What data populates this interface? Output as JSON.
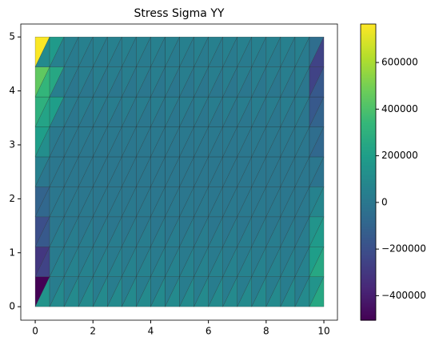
{
  "chart_data": {
    "type": "tripcolor",
    "title": "Stress Sigma YY",
    "colormap": "viridis",
    "x_nodes": [
      0,
      0.5,
      1,
      1.5,
      2,
      2.5,
      3,
      3.5,
      4,
      4.5,
      5,
      5.5,
      6,
      6.5,
      7,
      7.5,
      8,
      8.5,
      9,
      9.5,
      10
    ],
    "y_nodes": [
      0,
      0.5556,
      1.1111,
      1.6667,
      2.2222,
      2.7778,
      3.3333,
      3.8889,
      4.4444,
      5
    ],
    "values": [
      [
        -500000,
        150000,
        30000,
        100000,
        30000,
        100000,
        30000,
        100000,
        30000,
        100000,
        30000,
        100000,
        30000,
        100000,
        30000,
        100000,
        30000,
        100000,
        30000,
        100000,
        30000,
        100000,
        30000,
        100000,
        30000,
        100000,
        30000,
        100000,
        30000,
        100000,
        30000,
        100000,
        30000,
        100000,
        30000,
        100000,
        30000,
        100000,
        150000,
        250000
      ],
      [
        -300000,
        -250000,
        20000,
        60000,
        20000,
        60000,
        20000,
        60000,
        20000,
        60000,
        20000,
        60000,
        20000,
        60000,
        20000,
        60000,
        20000,
        60000,
        20000,
        60000,
        20000,
        60000,
        20000,
        60000,
        20000,
        60000,
        20000,
        60000,
        20000,
        60000,
        20000,
        60000,
        20000,
        60000,
        20000,
        60000,
        20000,
        60000,
        200000,
        250000
      ],
      [
        -200000,
        -150000,
        0,
        30000,
        0,
        30000,
        0,
        30000,
        0,
        30000,
        0,
        30000,
        0,
        30000,
        0,
        30000,
        0,
        30000,
        0,
        30000,
        0,
        30000,
        0,
        30000,
        0,
        30000,
        0,
        30000,
        0,
        30000,
        0,
        30000,
        0,
        30000,
        0,
        30000,
        0,
        30000,
        150000,
        180000
      ],
      [
        -100000,
        -80000,
        0,
        10000,
        0,
        10000,
        0,
        10000,
        0,
        10000,
        0,
        10000,
        0,
        10000,
        0,
        10000,
        0,
        10000,
        0,
        10000,
        0,
        10000,
        0,
        10000,
        0,
        10000,
        0,
        10000,
        0,
        10000,
        0,
        10000,
        0,
        10000,
        0,
        10000,
        0,
        10000,
        60000,
        80000
      ],
      [
        50000,
        0,
        0,
        0,
        0,
        0,
        0,
        0,
        0,
        0,
        0,
        0,
        0,
        0,
        0,
        0,
        0,
        0,
        0,
        0,
        0,
        0,
        0,
        0,
        0,
        0,
        0,
        0,
        0,
        0,
        0,
        0,
        0,
        0,
        0,
        0,
        0,
        0,
        0,
        -20000
      ],
      [
        200000,
        120000,
        10000,
        0,
        10000,
        0,
        10000,
        0,
        10000,
        0,
        10000,
        0,
        10000,
        0,
        10000,
        0,
        10000,
        0,
        10000,
        0,
        10000,
        0,
        10000,
        0,
        10000,
        0,
        10000,
        0,
        10000,
        0,
        10000,
        0,
        10000,
        0,
        10000,
        0,
        10000,
        0,
        -50000,
        -80000
      ],
      [
        300000,
        230000,
        200000,
        30000,
        30000,
        0,
        30000,
        0,
        30000,
        0,
        30000,
        0,
        30000,
        0,
        30000,
        0,
        30000,
        0,
        30000,
        0,
        30000,
        0,
        30000,
        0,
        30000,
        0,
        30000,
        0,
        30000,
        0,
        30000,
        0,
        30000,
        0,
        30000,
        0,
        30000,
        0,
        -150000,
        -100000
      ],
      [
        450000,
        330000,
        250000,
        40000,
        40000,
        0,
        40000,
        0,
        40000,
        0,
        40000,
        0,
        40000,
        0,
        40000,
        0,
        40000,
        0,
        40000,
        0,
        40000,
        0,
        40000,
        0,
        40000,
        0,
        40000,
        0,
        40000,
        0,
        40000,
        0,
        40000,
        0,
        40000,
        0,
        40000,
        0,
        -250000,
        -150000
      ],
      [
        760000,
        100000,
        180000,
        50000,
        50000,
        20000,
        50000,
        20000,
        50000,
        20000,
        50000,
        20000,
        50000,
        20000,
        50000,
        20000,
        50000,
        20000,
        50000,
        20000,
        50000,
        20000,
        50000,
        20000,
        50000,
        20000,
        50000,
        20000,
        50000,
        20000,
        50000,
        20000,
        50000,
        20000,
        50000,
        20000,
        50000,
        20000,
        -50000,
        -250000
      ]
    ],
    "xlim": [
      -0.5,
      10.47
    ],
    "ylim": [
      -0.25,
      5.24
    ],
    "xticks": [
      0,
      2,
      4,
      6,
      8,
      10
    ],
    "yticks": [
      0,
      1,
      2,
      3,
      4,
      5
    ],
    "clim": [
      -505000,
      765000
    ],
    "cticks": [
      {
        "value": -400000,
        "label": "−400000"
      },
      {
        "value": -200000,
        "label": "−200000"
      },
      0,
      200000,
      400000,
      600000
    ]
  }
}
